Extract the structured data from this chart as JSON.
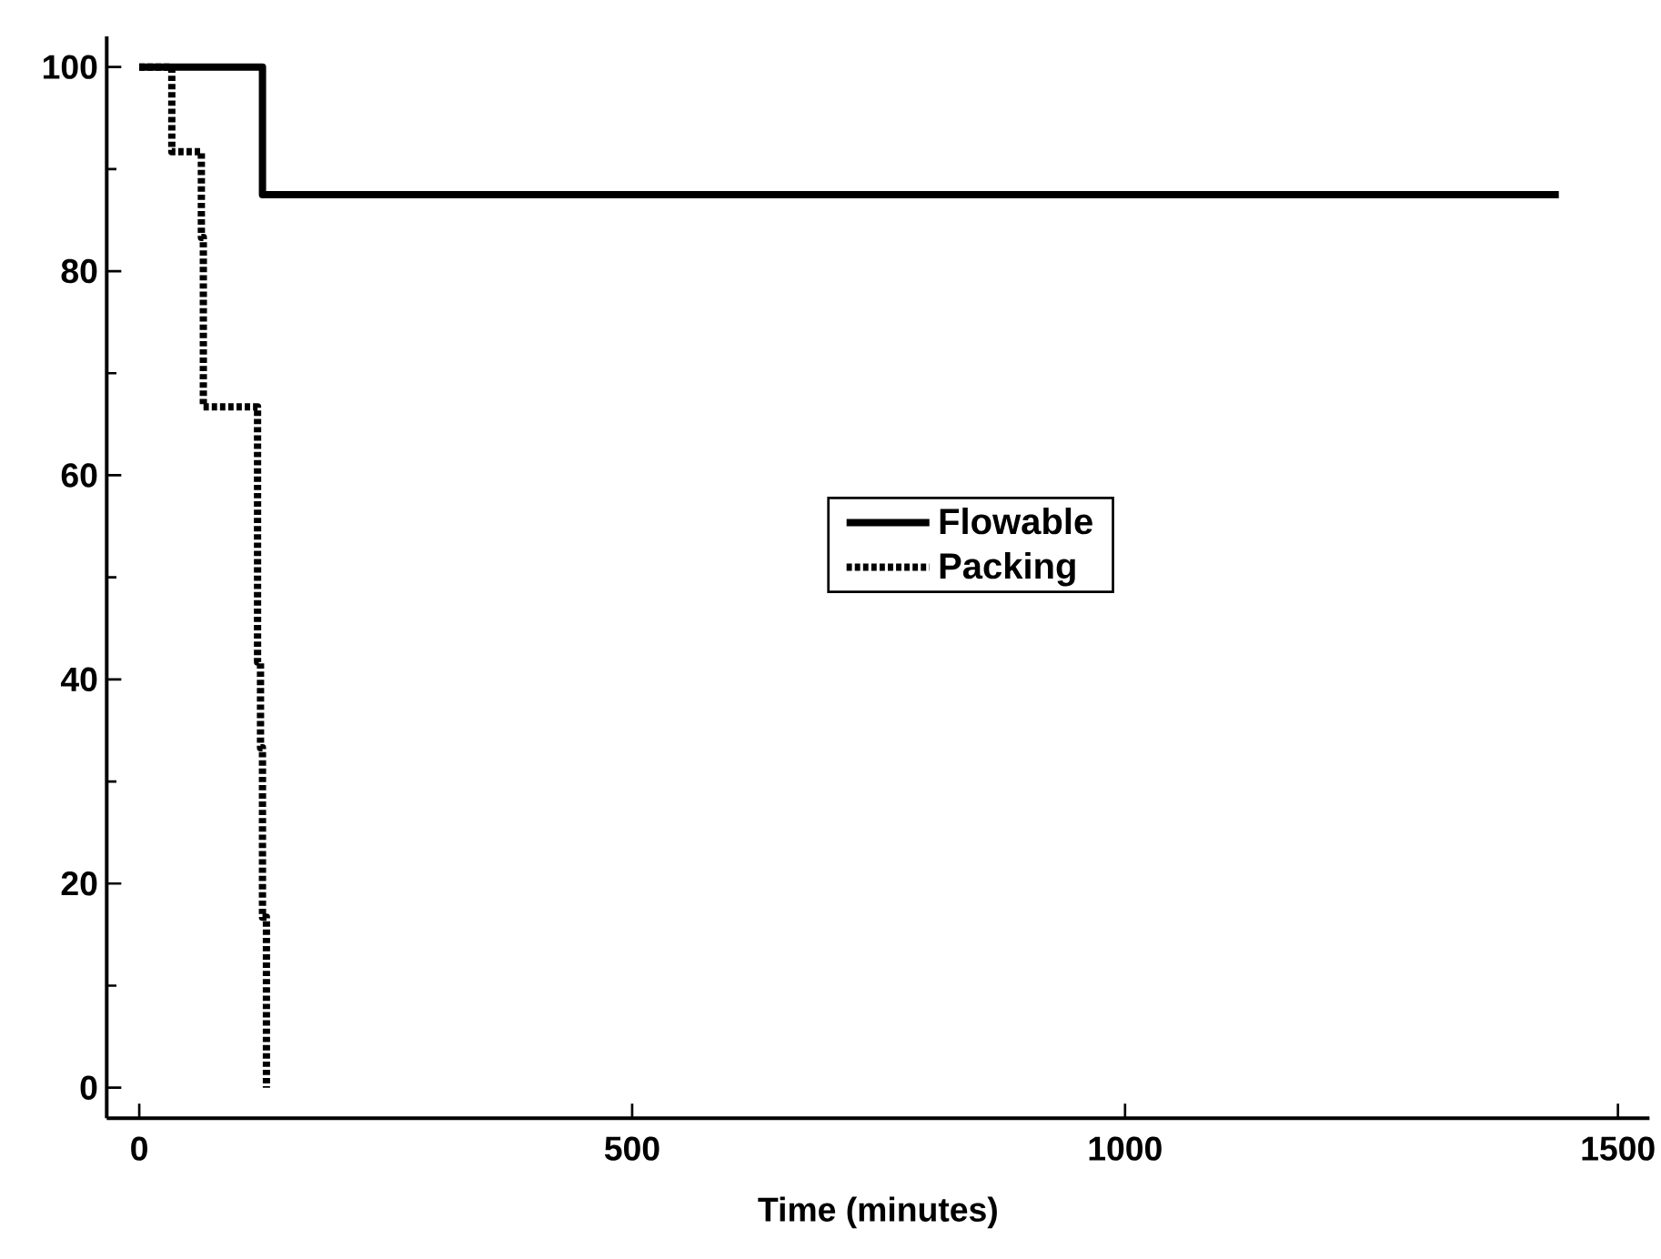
{
  "chart_data": {
    "type": "step",
    "xlabel": "Time (minutes)",
    "xlim": [
      -33,
      1532
    ],
    "ylim": [
      -3,
      103
    ],
    "xticks": [
      0,
      500,
      1000,
      1500
    ],
    "yticks": [
      0,
      20,
      40,
      60,
      80,
      100
    ],
    "legend": "center",
    "series": [
      {
        "name": "Flowable",
        "color": "#000000",
        "line_style": "solid",
        "x": [
          0,
          125,
          1440
        ],
        "values": [
          100,
          87.5,
          87.5
        ]
      },
      {
        "name": "Packing",
        "color": "#000000",
        "line_style": "dotted",
        "x": [
          0,
          33,
          63,
          65,
          120,
          123,
          125,
          129
        ],
        "values": [
          100,
          91.7,
          83.3,
          66.7,
          41.7,
          33.3,
          16.7,
          0
        ]
      }
    ]
  }
}
